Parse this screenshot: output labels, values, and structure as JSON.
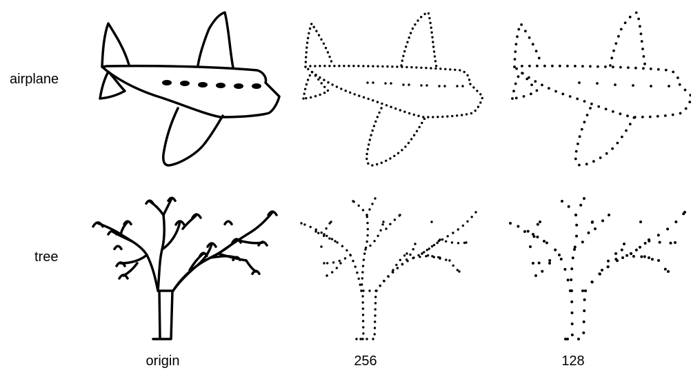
{
  "rows": [
    {
      "label": "airplane"
    },
    {
      "label": "tree"
    }
  ],
  "columns": [
    {
      "label": "origin",
      "style": "stroke"
    },
    {
      "label": "256",
      "style": "dotted",
      "points": 256
    },
    {
      "label": "128",
      "style": "dotted",
      "points": 128
    }
  ],
  "colors": {
    "ink": "#000000",
    "background": "#ffffff"
  }
}
